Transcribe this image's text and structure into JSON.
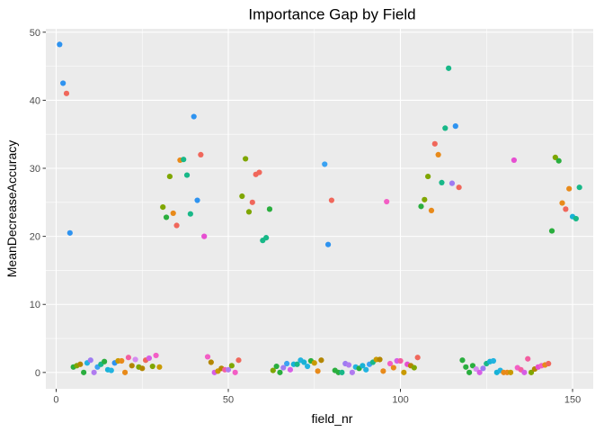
{
  "chart_data": {
    "type": "scatter",
    "title": "Importance Gap by Field",
    "xlabel": "field_nr",
    "ylabel": "MeanDecreaseAccuracy",
    "xlim": [
      -3,
      156
    ],
    "ylim": [
      -2.4,
      50.5
    ],
    "x_ticks": [
      0,
      50,
      100,
      150
    ],
    "y_ticks": [
      0,
      10,
      20,
      30,
      40,
      50
    ],
    "x_minor_ticks": [
      25,
      75,
      125
    ],
    "y_minor_ticks": [
      5,
      15,
      25,
      35,
      45
    ],
    "grid": true,
    "legend": "none",
    "panel_background": "#ebebeb",
    "grid_color": "#ffffff",
    "points": [
      {
        "x": 1,
        "y": 48.2,
        "color": "#2e93f0"
      },
      {
        "x": 2,
        "y": 42.5,
        "color": "#2e93f0"
      },
      {
        "x": 3,
        "y": 41.0,
        "color": "#f0675b"
      },
      {
        "x": 4,
        "y": 20.5,
        "color": "#2e93f0"
      },
      {
        "x": 5,
        "y": 0.8,
        "color": "#2aae3e"
      },
      {
        "x": 6,
        "y": 1.0,
        "color": "#7fa600"
      },
      {
        "x": 7,
        "y": 1.2,
        "color": "#b38600"
      },
      {
        "x": 8,
        "y": 0.0,
        "color": "#2aae3e"
      },
      {
        "x": 9,
        "y": 1.4,
        "color": "#21b3e0"
      },
      {
        "x": 10,
        "y": 1.8,
        "color": "#9e7bf2"
      },
      {
        "x": 11,
        "y": 0.0,
        "color": "#b07cf0"
      },
      {
        "x": 12,
        "y": 0.8,
        "color": "#3aa2f2"
      },
      {
        "x": 13,
        "y": 1.2,
        "color": "#18b888"
      },
      {
        "x": 14,
        "y": 1.6,
        "color": "#2aae3e"
      },
      {
        "x": 15,
        "y": 0.4,
        "color": "#18b2d6"
      },
      {
        "x": 16,
        "y": 0.3,
        "color": "#21b3e0"
      },
      {
        "x": 17,
        "y": 1.4,
        "color": "#2e93f0"
      },
      {
        "x": 18,
        "y": 1.7,
        "color": "#c99a00"
      },
      {
        "x": 19,
        "y": 1.7,
        "color": "#e88a1a"
      },
      {
        "x": 20,
        "y": 0.0,
        "color": "#e88a1a"
      },
      {
        "x": 21,
        "y": 2.2,
        "color": "#f35ea0"
      },
      {
        "x": 22,
        "y": 1.0,
        "color": "#b38600"
      },
      {
        "x": 23,
        "y": 1.9,
        "color": "#d58cf0"
      },
      {
        "x": 24,
        "y": 0.8,
        "color": "#7fa600"
      },
      {
        "x": 25,
        "y": 0.6,
        "color": "#b38600"
      },
      {
        "x": 26,
        "y": 1.8,
        "color": "#f0675b"
      },
      {
        "x": 27,
        "y": 2.1,
        "color": "#d65ee6"
      },
      {
        "x": 28,
        "y": 0.9,
        "color": "#7fa600"
      },
      {
        "x": 29,
        "y": 2.5,
        "color": "#f35ec5"
      },
      {
        "x": 30,
        "y": 0.8,
        "color": "#c99a00"
      },
      {
        "x": 31,
        "y": 24.3,
        "color": "#7fa600"
      },
      {
        "x": 32,
        "y": 22.8,
        "color": "#2aae3e"
      },
      {
        "x": 33,
        "y": 28.8,
        "color": "#7fa600"
      },
      {
        "x": 34,
        "y": 23.4,
        "color": "#e88a1a"
      },
      {
        "x": 35,
        "y": 21.6,
        "color": "#f0675b"
      },
      {
        "x": 36,
        "y": 31.2,
        "color": "#e88a1a"
      },
      {
        "x": 37,
        "y": 31.3,
        "color": "#18b888"
      },
      {
        "x": 38,
        "y": 29.0,
        "color": "#18b888"
      },
      {
        "x": 39,
        "y": 23.3,
        "color": "#18b888"
      },
      {
        "x": 40,
        "y": 37.6,
        "color": "#2e93f0"
      },
      {
        "x": 41,
        "y": 25.3,
        "color": "#2e93f0"
      },
      {
        "x": 42,
        "y": 32.0,
        "color": "#f0675b"
      },
      {
        "x": 43,
        "y": 20.0,
        "color": "#e64fd1"
      },
      {
        "x": 44,
        "y": 2.3,
        "color": "#f35ec5"
      },
      {
        "x": 45,
        "y": 1.5,
        "color": "#b38600"
      },
      {
        "x": 46,
        "y": 0.0,
        "color": "#d65ee6"
      },
      {
        "x": 47,
        "y": 0.2,
        "color": "#c99a00"
      },
      {
        "x": 48,
        "y": 0.6,
        "color": "#b38600"
      },
      {
        "x": 49,
        "y": 0.4,
        "color": "#f35ea0"
      },
      {
        "x": 50,
        "y": 0.4,
        "color": "#b07cf0"
      },
      {
        "x": 51,
        "y": 1.0,
        "color": "#7fa600"
      },
      {
        "x": 52,
        "y": 0.0,
        "color": "#f35ec5"
      },
      {
        "x": 53,
        "y": 1.8,
        "color": "#f0675b"
      },
      {
        "x": 54,
        "y": 25.9,
        "color": "#7fa600"
      },
      {
        "x": 55,
        "y": 31.4,
        "color": "#7fa600"
      },
      {
        "x": 56,
        "y": 23.6,
        "color": "#7fa600"
      },
      {
        "x": 57,
        "y": 25.0,
        "color": "#f0675b"
      },
      {
        "x": 58,
        "y": 29.1,
        "color": "#f0675b"
      },
      {
        "x": 59,
        "y": 29.4,
        "color": "#f0675b"
      },
      {
        "x": 60,
        "y": 19.4,
        "color": "#18b888"
      },
      {
        "x": 61,
        "y": 19.8,
        "color": "#18b888"
      },
      {
        "x": 62,
        "y": 24.0,
        "color": "#2aae3e"
      },
      {
        "x": 63,
        "y": 0.3,
        "color": "#7fa600"
      },
      {
        "x": 64,
        "y": 0.9,
        "color": "#2aae3e"
      },
      {
        "x": 65,
        "y": 0.0,
        "color": "#2aae3e"
      },
      {
        "x": 66,
        "y": 0.7,
        "color": "#9e7bf2"
      },
      {
        "x": 67,
        "y": 1.3,
        "color": "#3aa2f2"
      },
      {
        "x": 68,
        "y": 0.4,
        "color": "#d65ee6"
      },
      {
        "x": 69,
        "y": 1.2,
        "color": "#18b2d6"
      },
      {
        "x": 70,
        "y": 1.2,
        "color": "#18b888"
      },
      {
        "x": 71,
        "y": 1.8,
        "color": "#21b3e0"
      },
      {
        "x": 72,
        "y": 1.5,
        "color": "#18b2d6"
      },
      {
        "x": 73,
        "y": 0.9,
        "color": "#21b3e0"
      },
      {
        "x": 74,
        "y": 1.7,
        "color": "#2aae3e"
      },
      {
        "x": 75,
        "y": 1.4,
        "color": "#c99a00"
      },
      {
        "x": 76,
        "y": 0.2,
        "color": "#e88a1a"
      },
      {
        "x": 77,
        "y": 1.8,
        "color": "#b38600"
      },
      {
        "x": 78,
        "y": 30.6,
        "color": "#3aa2f2"
      },
      {
        "x": 79,
        "y": 18.8,
        "color": "#2e93f0"
      },
      {
        "x": 80,
        "y": 25.3,
        "color": "#f0675b"
      },
      {
        "x": 81,
        "y": 0.3,
        "color": "#2aae3e"
      },
      {
        "x": 82,
        "y": 0.0,
        "color": "#2aae3e"
      },
      {
        "x": 83,
        "y": 0.0,
        "color": "#18b888"
      },
      {
        "x": 84,
        "y": 1.3,
        "color": "#9e7bf2"
      },
      {
        "x": 85,
        "y": 1.1,
        "color": "#b07cf0"
      },
      {
        "x": 86,
        "y": 0.0,
        "color": "#b07cf0"
      },
      {
        "x": 87,
        "y": 0.8,
        "color": "#21b3e0"
      },
      {
        "x": 88,
        "y": 0.6,
        "color": "#2aae3e"
      },
      {
        "x": 89,
        "y": 1.0,
        "color": "#18b2d6"
      },
      {
        "x": 90,
        "y": 0.4,
        "color": "#21b3e0"
      },
      {
        "x": 91,
        "y": 1.2,
        "color": "#3aa2f2"
      },
      {
        "x": 92,
        "y": 1.5,
        "color": "#18b888"
      },
      {
        "x": 93,
        "y": 1.9,
        "color": "#c99a00"
      },
      {
        "x": 94,
        "y": 1.9,
        "color": "#b38600"
      },
      {
        "x": 95,
        "y": 0.2,
        "color": "#e88a1a"
      },
      {
        "x": 96,
        "y": 25.1,
        "color": "#f35ec5"
      },
      {
        "x": 97,
        "y": 1.3,
        "color": "#f35ec5"
      },
      {
        "x": 98,
        "y": 0.7,
        "color": "#e88a1a"
      },
      {
        "x": 99,
        "y": 1.7,
        "color": "#d65ee6"
      },
      {
        "x": 100,
        "y": 1.7,
        "color": "#f35ea0"
      },
      {
        "x": 101,
        "y": 0.0,
        "color": "#c99a00"
      },
      {
        "x": 102,
        "y": 1.2,
        "color": "#e64fd1"
      },
      {
        "x": 103,
        "y": 1.0,
        "color": "#b38600"
      },
      {
        "x": 104,
        "y": 0.7,
        "color": "#7fa600"
      },
      {
        "x": 105,
        "y": 2.2,
        "color": "#f0675b"
      },
      {
        "x": 106,
        "y": 24.4,
        "color": "#2aae3e"
      },
      {
        "x": 107,
        "y": 25.4,
        "color": "#7fa600"
      },
      {
        "x": 108,
        "y": 28.8,
        "color": "#7fa600"
      },
      {
        "x": 109,
        "y": 23.8,
        "color": "#e88a1a"
      },
      {
        "x": 110,
        "y": 33.6,
        "color": "#f0675b"
      },
      {
        "x": 111,
        "y": 32.0,
        "color": "#e88a1a"
      },
      {
        "x": 112,
        "y": 27.9,
        "color": "#18b888"
      },
      {
        "x": 113,
        "y": 35.9,
        "color": "#18b888"
      },
      {
        "x": 114,
        "y": 44.7,
        "color": "#18b888"
      },
      {
        "x": 115,
        "y": 27.8,
        "color": "#9e7bf2"
      },
      {
        "x": 116,
        "y": 36.2,
        "color": "#2e93f0"
      },
      {
        "x": 117,
        "y": 27.2,
        "color": "#f0675b"
      },
      {
        "x": 118,
        "y": 1.8,
        "color": "#2aae3e"
      },
      {
        "x": 119,
        "y": 0.8,
        "color": "#2aae3e"
      },
      {
        "x": 120,
        "y": 0.0,
        "color": "#2aae3e"
      },
      {
        "x": 121,
        "y": 1.0,
        "color": "#2aae3e"
      },
      {
        "x": 122,
        "y": 0.5,
        "color": "#d58cf0"
      },
      {
        "x": 123,
        "y": 0.0,
        "color": "#d65ee6"
      },
      {
        "x": 124,
        "y": 0.6,
        "color": "#9e7bf2"
      },
      {
        "x": 125,
        "y": 1.3,
        "color": "#18b888"
      },
      {
        "x": 126,
        "y": 1.6,
        "color": "#18b2d6"
      },
      {
        "x": 127,
        "y": 1.7,
        "color": "#21b3e0"
      },
      {
        "x": 128,
        "y": 0.0,
        "color": "#18b2d6"
      },
      {
        "x": 129,
        "y": 0.3,
        "color": "#21b3e0"
      },
      {
        "x": 130,
        "y": 0.0,
        "color": "#e88a1a"
      },
      {
        "x": 131,
        "y": 0.0,
        "color": "#e88a1a"
      },
      {
        "x": 132,
        "y": 0.0,
        "color": "#c99a00"
      },
      {
        "x": 133,
        "y": 31.2,
        "color": "#e64fd1"
      },
      {
        "x": 134,
        "y": 0.7,
        "color": "#f35ec5"
      },
      {
        "x": 135,
        "y": 0.4,
        "color": "#f35ea0"
      },
      {
        "x": 136,
        "y": 0.0,
        "color": "#d65ee6"
      },
      {
        "x": 137,
        "y": 2.0,
        "color": "#f35ea0"
      },
      {
        "x": 138,
        "y": 0.0,
        "color": "#7fa600"
      },
      {
        "x": 139,
        "y": 0.5,
        "color": "#b38600"
      },
      {
        "x": 140,
        "y": 0.8,
        "color": "#e64fd1"
      },
      {
        "x": 141,
        "y": 1.0,
        "color": "#f35ec5"
      },
      {
        "x": 142,
        "y": 1.1,
        "color": "#e88a1a"
      },
      {
        "x": 143,
        "y": 1.3,
        "color": "#f0675b"
      },
      {
        "x": 144,
        "y": 20.8,
        "color": "#2aae3e"
      },
      {
        "x": 145,
        "y": 31.6,
        "color": "#7fa600"
      },
      {
        "x": 146,
        "y": 31.1,
        "color": "#2aae3e"
      },
      {
        "x": 147,
        "y": 24.9,
        "color": "#e88a1a"
      },
      {
        "x": 148,
        "y": 24.0,
        "color": "#f0675b"
      },
      {
        "x": 149,
        "y": 27.0,
        "color": "#e88a1a"
      },
      {
        "x": 150,
        "y": 22.9,
        "color": "#18b2d6"
      },
      {
        "x": 151,
        "y": 22.6,
        "color": "#18b888"
      },
      {
        "x": 152,
        "y": 27.2,
        "color": "#18b888"
      }
    ]
  }
}
